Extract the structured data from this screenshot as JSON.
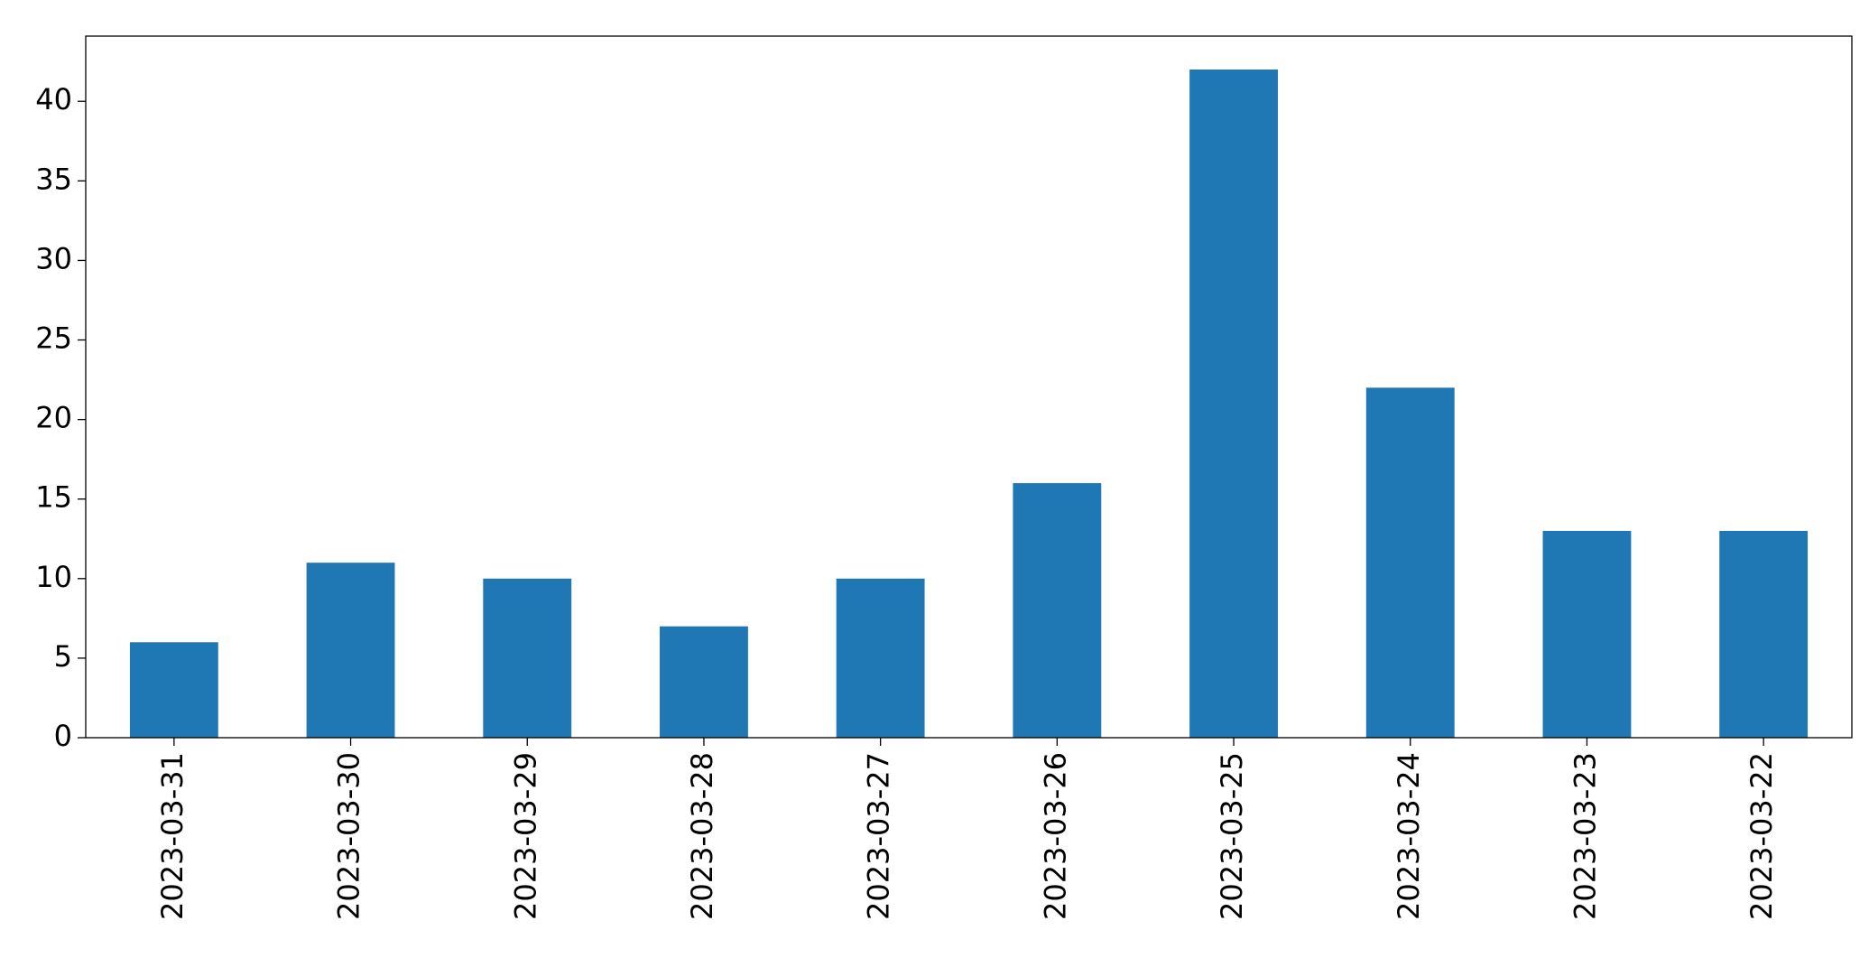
{
  "chart_data": {
    "type": "bar",
    "categories": [
      "2023-03-31",
      "2023-03-30",
      "2023-03-29",
      "2023-03-28",
      "2023-03-27",
      "2023-03-26",
      "2023-03-25",
      "2023-03-24",
      "2023-03-23",
      "2023-03-22"
    ],
    "values": [
      6,
      11,
      10,
      7,
      10,
      16,
      42,
      22,
      13,
      13
    ],
    "color": "#1f77b4",
    "ylim": [
      0,
      44.1
    ],
    "yticks": [
      0,
      5,
      10,
      15,
      20,
      25,
      30,
      35,
      40
    ],
    "grid": false
  }
}
